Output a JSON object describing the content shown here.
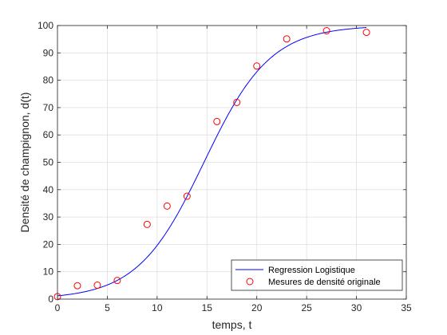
{
  "chart_data": {
    "type": "scatter",
    "title": "",
    "xlabel": "temps, t",
    "ylabel": "Densité de champignon, d(t)",
    "xlim": [
      0,
      35
    ],
    "ylim": [
      0,
      100
    ],
    "xticks": [
      0,
      5,
      10,
      15,
      20,
      25,
      30,
      35
    ],
    "yticks": [
      0,
      10,
      20,
      30,
      40,
      50,
      60,
      70,
      80,
      90,
      100
    ],
    "grid": true,
    "legend_position": "bottom-right",
    "series": [
      {
        "name": "Regression Logistique",
        "type": "line",
        "color": "#0000ff",
        "model": {
          "L": 100,
          "k": 0.3,
          "t0": 14.7
        },
        "x_range": [
          0,
          31
        ]
      },
      {
        "name": "Mesures de densité originale",
        "type": "scatter",
        "color": "#ff0000",
        "marker": "circle-open",
        "x": [
          0,
          2,
          4,
          6,
          9,
          11,
          13,
          16,
          18,
          20,
          23,
          27,
          31
        ],
        "y": [
          0.9,
          4.9,
          5.1,
          6.8,
          27.3,
          34.0,
          37.6,
          64.9,
          71.9,
          85.2,
          95.1,
          98.1,
          97.5
        ]
      }
    ]
  }
}
